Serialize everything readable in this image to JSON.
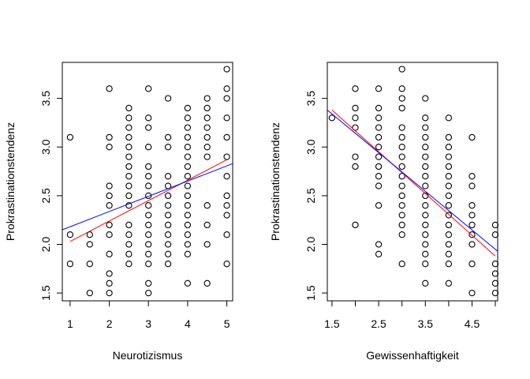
{
  "chart_data": [
    {
      "type": "scatter",
      "xlabel": "Neurotizismus",
      "ylabel": "Prokrastinationstendenz",
      "xlim": [
        0.8,
        5.15
      ],
      "ylim": [
        1.42,
        3.87
      ],
      "xticks": [
        1,
        2,
        3,
        4,
        5
      ],
      "yticks": [
        1.5,
        2.0,
        2.5,
        3.0,
        3.5
      ],
      "xtick_labels": [
        "1",
        "2",
        "3",
        "4",
        "5"
      ],
      "ytick_labels": [
        "1.5",
        "2.0",
        "2.5",
        "3.0",
        "3.5"
      ],
      "grid": false,
      "point_marker": "open-circle",
      "point_color": "#000000",
      "points": [
        [
          1,
          3.1
        ],
        [
          1,
          2.1
        ],
        [
          1,
          1.8
        ],
        [
          1.5,
          2.1
        ],
        [
          1.5,
          2.0
        ],
        [
          1.5,
          1.8
        ],
        [
          1.5,
          1.5
        ],
        [
          2,
          3.6
        ],
        [
          2,
          3.1
        ],
        [
          2,
          3.0
        ],
        [
          2,
          2.6
        ],
        [
          2,
          2.5
        ],
        [
          2,
          2.4
        ],
        [
          2,
          2.2
        ],
        [
          2,
          2.1
        ],
        [
          2,
          1.9
        ],
        [
          2,
          1.7
        ],
        [
          2,
          1.6
        ],
        [
          2,
          1.5
        ],
        [
          2.5,
          3.4
        ],
        [
          2.5,
          3.3
        ],
        [
          2.5,
          3.2
        ],
        [
          2.5,
          3.1
        ],
        [
          2.5,
          3.0
        ],
        [
          2.5,
          2.9
        ],
        [
          2.5,
          2.8
        ],
        [
          2.5,
          2.7
        ],
        [
          2.5,
          2.6
        ],
        [
          2.5,
          2.5
        ],
        [
          2.5,
          2.4
        ],
        [
          2.5,
          2.2
        ],
        [
          2.5,
          2.1
        ],
        [
          2.5,
          2.0
        ],
        [
          2.5,
          1.9
        ],
        [
          2.5,
          1.8
        ],
        [
          3,
          3.6
        ],
        [
          3,
          3.3
        ],
        [
          3,
          3.2
        ],
        [
          3,
          3.0
        ],
        [
          3,
          2.8
        ],
        [
          3,
          2.7
        ],
        [
          3,
          2.6
        ],
        [
          3,
          2.5
        ],
        [
          3,
          2.4
        ],
        [
          3,
          2.3
        ],
        [
          3,
          2.2
        ],
        [
          3,
          2.1
        ],
        [
          3,
          2.0
        ],
        [
          3,
          1.9
        ],
        [
          3,
          1.8
        ],
        [
          3,
          1.6
        ],
        [
          3,
          1.5
        ],
        [
          3.5,
          3.5
        ],
        [
          3.5,
          3.1
        ],
        [
          3.5,
          3.0
        ],
        [
          3.5,
          2.7
        ],
        [
          3.5,
          2.6
        ],
        [
          3.5,
          2.5
        ],
        [
          3.5,
          2.4
        ],
        [
          3.5,
          2.3
        ],
        [
          3.5,
          2.2
        ],
        [
          3.5,
          2.1
        ],
        [
          3.5,
          2.0
        ],
        [
          3.5,
          1.9
        ],
        [
          3.5,
          1.8
        ],
        [
          4,
          3.4
        ],
        [
          4,
          3.3
        ],
        [
          4,
          3.2
        ],
        [
          4,
          3.1
        ],
        [
          4,
          3.0
        ],
        [
          4,
          2.9
        ],
        [
          4,
          2.8
        ],
        [
          4,
          2.7
        ],
        [
          4,
          2.6
        ],
        [
          4,
          2.5
        ],
        [
          4,
          2.4
        ],
        [
          4,
          2.3
        ],
        [
          4,
          2.2
        ],
        [
          4,
          2.1
        ],
        [
          4,
          2.0
        ],
        [
          4,
          1.9
        ],
        [
          4,
          1.6
        ],
        [
          4.5,
          3.5
        ],
        [
          4.5,
          3.4
        ],
        [
          4.5,
          3.3
        ],
        [
          4.5,
          3.2
        ],
        [
          4.5,
          3.1
        ],
        [
          4.5,
          3.0
        ],
        [
          4.5,
          2.9
        ],
        [
          4.5,
          2.4
        ],
        [
          4.5,
          2.2
        ],
        [
          4.5,
          2.0
        ],
        [
          4.5,
          1.6
        ],
        [
          5,
          3.8
        ],
        [
          5,
          3.6
        ],
        [
          5,
          3.5
        ],
        [
          5,
          3.3
        ],
        [
          5,
          3.1
        ],
        [
          5,
          2.9
        ],
        [
          5,
          2.7
        ],
        [
          5,
          2.5
        ],
        [
          5,
          2.4
        ],
        [
          5,
          2.3
        ],
        [
          5,
          2.1
        ],
        [
          5,
          1.8
        ]
      ],
      "lines": [
        {
          "color": "#ff0000",
          "x": [
            1,
            5
          ],
          "y": [
            2.03,
            2.87
          ]
        },
        {
          "color": "#0000ff",
          "x": [
            0.8,
            5.15
          ],
          "y": [
            2.15,
            2.83
          ]
        }
      ]
    },
    {
      "type": "scatter",
      "xlabel": "Gewissenhaftigkeit",
      "ylabel": "Prokrastinationstendenz",
      "xlim": [
        1.4,
        5.05
      ],
      "ylim": [
        1.42,
        3.87
      ],
      "xticks": [
        1.5,
        2.0,
        2.5,
        3.0,
        3.5,
        4.0,
        4.5,
        5.0
      ],
      "xtick_labels": [
        "1.5",
        "",
        "2.5",
        "",
        "3.5",
        "",
        "4.5",
        ""
      ],
      "yticks": [
        1.5,
        2.0,
        2.5,
        3.0,
        3.5
      ],
      "ytick_labels": [
        "1.5",
        "2.0",
        "2.5",
        "3.0",
        "3.5"
      ],
      "grid": false,
      "point_marker": "open-circle",
      "point_color": "#000000",
      "points": [
        [
          1.5,
          3.3
        ],
        [
          2,
          3.6
        ],
        [
          2,
          3.4
        ],
        [
          2,
          3.3
        ],
        [
          2,
          3.2
        ],
        [
          2,
          2.9
        ],
        [
          2,
          2.8
        ],
        [
          2,
          2.2
        ],
        [
          2.5,
          3.6
        ],
        [
          2.5,
          3.4
        ],
        [
          2.5,
          3.3
        ],
        [
          2.5,
          3.2
        ],
        [
          2.5,
          3.1
        ],
        [
          2.5,
          3.0
        ],
        [
          2.5,
          2.9
        ],
        [
          2.5,
          2.8
        ],
        [
          2.5,
          2.7
        ],
        [
          2.5,
          2.6
        ],
        [
          2.5,
          2.4
        ],
        [
          2.5,
          2.0
        ],
        [
          2.5,
          1.9
        ],
        [
          3,
          3.8
        ],
        [
          3,
          3.6
        ],
        [
          3,
          3.5
        ],
        [
          3,
          3.4
        ],
        [
          3,
          3.2
        ],
        [
          3,
          3.1
        ],
        [
          3,
          3.0
        ],
        [
          3,
          2.9
        ],
        [
          3,
          2.8
        ],
        [
          3,
          2.7
        ],
        [
          3,
          2.6
        ],
        [
          3,
          2.5
        ],
        [
          3,
          2.4
        ],
        [
          3,
          2.3
        ],
        [
          3,
          2.2
        ],
        [
          3,
          2.1
        ],
        [
          3,
          1.8
        ],
        [
          3.5,
          3.5
        ],
        [
          3.5,
          3.3
        ],
        [
          3.5,
          3.2
        ],
        [
          3.5,
          3.1
        ],
        [
          3.5,
          3.0
        ],
        [
          3.5,
          2.9
        ],
        [
          3.5,
          2.8
        ],
        [
          3.5,
          2.7
        ],
        [
          3.5,
          2.6
        ],
        [
          3.5,
          2.5
        ],
        [
          3.5,
          2.4
        ],
        [
          3.5,
          2.3
        ],
        [
          3.5,
          2.2
        ],
        [
          3.5,
          2.1
        ],
        [
          3.5,
          2.0
        ],
        [
          3.5,
          1.9
        ],
        [
          3.5,
          1.8
        ],
        [
          3.5,
          1.6
        ],
        [
          4,
          3.3
        ],
        [
          4,
          3.1
        ],
        [
          4,
          3.0
        ],
        [
          4,
          2.9
        ],
        [
          4,
          2.8
        ],
        [
          4,
          2.7
        ],
        [
          4,
          2.6
        ],
        [
          4,
          2.5
        ],
        [
          4,
          2.4
        ],
        [
          4,
          2.3
        ],
        [
          4,
          2.2
        ],
        [
          4,
          2.1
        ],
        [
          4,
          2.0
        ],
        [
          4,
          1.9
        ],
        [
          4,
          1.8
        ],
        [
          4,
          1.6
        ],
        [
          4.5,
          3.1
        ],
        [
          4.5,
          2.7
        ],
        [
          4.5,
          2.6
        ],
        [
          4.5,
          2.4
        ],
        [
          4.5,
          2.3
        ],
        [
          4.5,
          2.2
        ],
        [
          4.5,
          2.1
        ],
        [
          4.5,
          2.0
        ],
        [
          4.5,
          1.8
        ],
        [
          4.5,
          1.5
        ],
        [
          5,
          2.2
        ],
        [
          5,
          2.1
        ],
        [
          5,
          1.8
        ],
        [
          5,
          1.7
        ],
        [
          5,
          1.6
        ],
        [
          5,
          1.5
        ]
      ],
      "lines": [
        {
          "color": "#ff0000",
          "x": [
            1.5,
            5
          ],
          "y": [
            3.38,
            1.88
          ]
        },
        {
          "color": "#0000ff",
          "x": [
            1.4,
            5.05
          ],
          "y": [
            3.38,
            1.93
          ]
        }
      ]
    }
  ]
}
